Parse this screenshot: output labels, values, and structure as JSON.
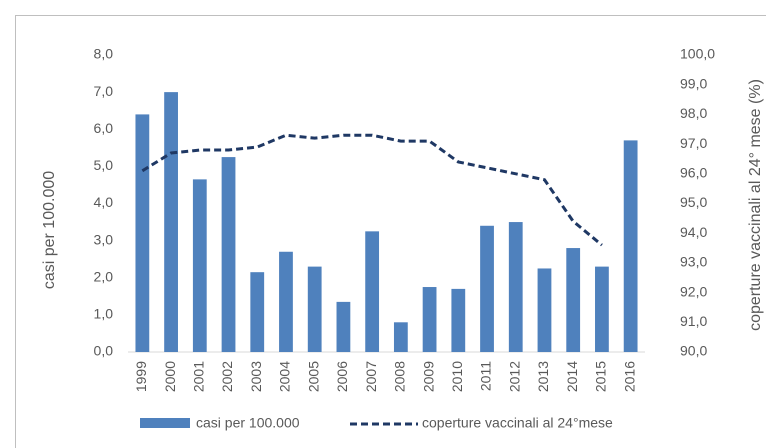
{
  "chart_data": {
    "type": "bar-line",
    "categories": [
      "1999",
      "2000",
      "2001",
      "2002",
      "2003",
      "2004",
      "2005",
      "2006",
      "2007",
      "2008",
      "2009",
      "2010",
      "2011",
      "2012",
      "2013",
      "2014",
      "2015",
      "2016"
    ],
    "series": [
      {
        "name": "casi per 100.000",
        "color": "#4f81bd",
        "type": "bar",
        "values": [
          6.4,
          7.0,
          4.65,
          5.25,
          2.15,
          2.7,
          2.3,
          1.35,
          3.25,
          0.8,
          1.75,
          1.7,
          3.4,
          3.5,
          2.25,
          2.8,
          2.3,
          5.7
        ]
      },
      {
        "name": "coperture vaccinali al 24°mese",
        "color": "#1f3864",
        "type": "line",
        "axis": "y2",
        "dashed": true,
        "values": [
          96.1,
          96.7,
          96.8,
          96.8,
          96.9,
          97.3,
          97.2,
          97.3,
          97.3,
          97.1,
          97.1,
          96.4,
          96.2,
          96.0,
          95.8,
          94.4,
          93.6,
          null
        ]
      }
    ],
    "y_label": "casi per 100.000",
    "y2_label": "coperture vaccinali al 24° mese (%)",
    "ylim": [
      0,
      8
    ],
    "yticks": [
      {
        "value": 0,
        "label": "0,0"
      },
      {
        "value": 1,
        "label": "1,0"
      },
      {
        "value": 2,
        "label": "2,0"
      },
      {
        "value": 3,
        "label": "3,0"
      },
      {
        "value": 4,
        "label": "4,0"
      },
      {
        "value": 5,
        "label": "5,0"
      },
      {
        "value": 6,
        "label": "6,0"
      },
      {
        "value": 7,
        "label": "7,0"
      },
      {
        "value": 8,
        "label": "8,0"
      }
    ],
    "y2lim": [
      90,
      100
    ],
    "y2ticks": [
      {
        "value": 90,
        "label": "90,0"
      },
      {
        "value": 91,
        "label": "91,0"
      },
      {
        "value": 92,
        "label": "92,0"
      },
      {
        "value": 93,
        "label": "93,0"
      },
      {
        "value": 94,
        "label": "94,0"
      },
      {
        "value": 95,
        "label": "95,0"
      },
      {
        "value": 96,
        "label": "96,0"
      },
      {
        "value": 97,
        "label": "97,0"
      },
      {
        "value": 98,
        "label": "98,0"
      },
      {
        "value": 99,
        "label": "99,0"
      },
      {
        "value": 100,
        "label": "100,0"
      }
    ],
    "legend": "bottom"
  }
}
